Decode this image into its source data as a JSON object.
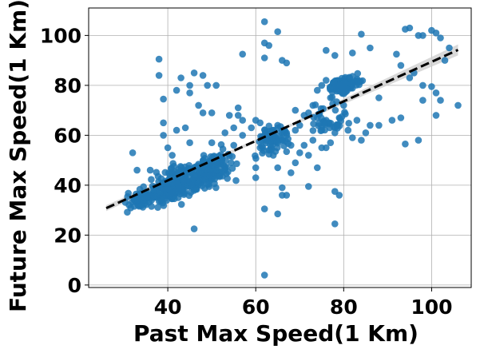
{
  "chart_data": {
    "type": "scatter",
    "xlabel": "Past Max Speed(1 Km)",
    "ylabel": "Future Max Speed(1 Km)",
    "xlim": [
      22,
      109
    ],
    "ylim": [
      -1,
      111
    ],
    "x_ticks": [
      40,
      60,
      80,
      100
    ],
    "y_ticks": [
      0,
      20,
      40,
      60,
      80,
      100
    ],
    "x_tick_labels": [
      "40",
      "60",
      "80",
      "100"
    ],
    "y_tick_labels": [
      "0",
      "20",
      "40",
      "60",
      "80",
      "100"
    ],
    "grid": true,
    "colors": {
      "points": "#1f77b4",
      "fit_line": "#000000",
      "ci_band": "#cccccc"
    },
    "fit_line": {
      "style": "dashed",
      "x": [
        26,
        106
      ],
      "y": [
        30.8,
        94.2
      ]
    },
    "ci_band": {
      "x": [
        26,
        66,
        106
      ],
      "half_width": [
        1.2,
        0.5,
        2.2
      ]
    },
    "points_outliers": [
      [
        62,
        105.5
      ],
      [
        65,
        101.5
      ],
      [
        62,
        97
      ],
      [
        63,
        96
      ],
      [
        62,
        91
      ],
      [
        57,
        92.5
      ],
      [
        66,
        90
      ],
      [
        67,
        89
      ],
      [
        76,
        94
      ],
      [
        78,
        92
      ],
      [
        82,
        93
      ],
      [
        84,
        100.5
      ],
      [
        86,
        95
      ],
      [
        92,
        92.5
      ],
      [
        94,
        102.5
      ],
      [
        95,
        103
      ],
      [
        97,
        100
      ],
      [
        98,
        100
      ],
      [
        100,
        102
      ],
      [
        101,
        101
      ],
      [
        102,
        99
      ],
      [
        104,
        95
      ],
      [
        103,
        90
      ],
      [
        96,
        85
      ],
      [
        93,
        88
      ],
      [
        95,
        83
      ],
      [
        98,
        80
      ],
      [
        100,
        79.5
      ],
      [
        101,
        77
      ],
      [
        102,
        74
      ],
      [
        106,
        72
      ],
      [
        98,
        74
      ],
      [
        93,
        67
      ],
      [
        94,
        56.5
      ],
      [
        97,
        58
      ],
      [
        101,
        68
      ],
      [
        91,
        66
      ],
      [
        88,
        75
      ],
      [
        88,
        64
      ],
      [
        84,
        58
      ],
      [
        78,
        37.5
      ],
      [
        79,
        36
      ],
      [
        78,
        24.5
      ],
      [
        65,
        28.5
      ],
      [
        62,
        30.5
      ],
      [
        62,
        4
      ],
      [
        66,
        36
      ],
      [
        46,
        22.5
      ],
      [
        38,
        84
      ],
      [
        38,
        90.5
      ],
      [
        39,
        74.5
      ],
      [
        42,
        78
      ],
      [
        43,
        83
      ],
      [
        45,
        80
      ],
      [
        45,
        77
      ],
      [
        46,
        85
      ],
      [
        48,
        84
      ],
      [
        49,
        80
      ],
      [
        51,
        80
      ],
      [
        47,
        72
      ],
      [
        48,
        69
      ],
      [
        50,
        69
      ],
      [
        54,
        68
      ],
      [
        56,
        68
      ],
      [
        57,
        66
      ],
      [
        55,
        63
      ],
      [
        57,
        60
      ],
      [
        59,
        63
      ],
      [
        60,
        66
      ],
      [
        61,
        65
      ],
      [
        56,
        71
      ],
      [
        32,
        53
      ],
      [
        33,
        46
      ],
      [
        36,
        46
      ],
      [
        40,
        55
      ],
      [
        41,
        52
      ],
      [
        42,
        62
      ],
      [
        39,
        65
      ],
      [
        39,
        60
      ],
      [
        44,
        63
      ],
      [
        45,
        57
      ],
      [
        50,
        57
      ],
      [
        53,
        61
      ],
      [
        55,
        56
      ],
      [
        60,
        43
      ],
      [
        60,
        47
      ],
      [
        61,
        55
      ],
      [
        63,
        54
      ],
      [
        64,
        52
      ],
      [
        65,
        47
      ],
      [
        66,
        39
      ],
      [
        67,
        36
      ],
      [
        68,
        45
      ],
      [
        69,
        49
      ],
      [
        70,
        53
      ],
      [
        71,
        56
      ],
      [
        72,
        39.5
      ],
      [
        72,
        52
      ],
      [
        73,
        58
      ],
      [
        74,
        47
      ],
      [
        75,
        55
      ],
      [
        76,
        55
      ],
      [
        72,
        69
      ],
      [
        73,
        72
      ],
      [
        74,
        78
      ],
      [
        75,
        80
      ],
      [
        76,
        82
      ],
      [
        77,
        75
      ],
      [
        74,
        67
      ],
      [
        75,
        62
      ],
      [
        76,
        66
      ],
      [
        77,
        57
      ],
      [
        78,
        61
      ],
      [
        79,
        67
      ],
      [
        80,
        72
      ],
      [
        81,
        62
      ],
      [
        82,
        59
      ],
      [
        83,
        66
      ],
      [
        85,
        61
      ],
      [
        86,
        64
      ],
      [
        63,
        60
      ],
      [
        64,
        62
      ],
      [
        65,
        64
      ],
      [
        66,
        58
      ],
      [
        67,
        61
      ],
      [
        68,
        56
      ],
      [
        69,
        62
      ],
      [
        70,
        64
      ],
      [
        71,
        68
      ],
      [
        69,
        70
      ]
    ],
    "fit_summary": {
      "slope": 0.7925,
      "intercept": 10.2
    }
  }
}
